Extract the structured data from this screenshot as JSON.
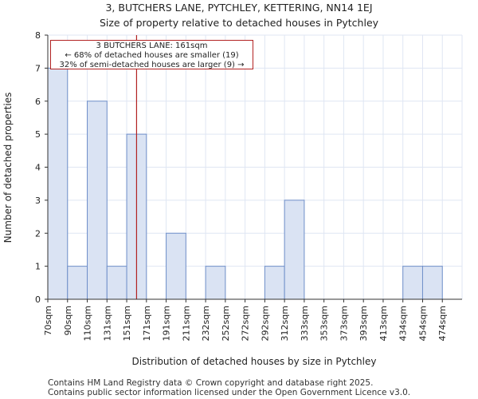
{
  "chart_data": {
    "type": "bar",
    "title": "3, BUTCHERS LANE, PYTCHLEY, KETTERING, NN14 1EJ",
    "subtitle": "Size of property relative to detached houses in Pytchley",
    "xlabel": "Distribution of detached houses by size in Pytchley",
    "ylabel": "Number of detached properties",
    "categories": [
      "70sqm",
      "90sqm",
      "110sqm",
      "131sqm",
      "151sqm",
      "171sqm",
      "191sqm",
      "211sqm",
      "232sqm",
      "252sqm",
      "272sqm",
      "292sqm",
      "312sqm",
      "333sqm",
      "353sqm",
      "373sqm",
      "393sqm",
      "413sqm",
      "434sqm",
      "454sqm",
      "474sqm"
    ],
    "values": [
      7,
      1,
      6,
      1,
      5,
      0,
      2,
      0,
      1,
      0,
      0,
      1,
      3,
      0,
      0,
      0,
      0,
      0,
      1,
      1,
      0
    ],
    "ylim": [
      0,
      8
    ],
    "yticks": [
      0,
      1,
      2,
      3,
      4,
      5,
      6,
      7,
      8
    ],
    "marker_value_sqm": 161,
    "annotation": {
      "line1": "3 BUTCHERS LANE: 161sqm",
      "line2": "← 68% of detached houses are smaller (19)",
      "line3": "32% of semi-detached houses are larger (9) →"
    },
    "colors": {
      "bar_fill": "#dae3f3",
      "bar_edge": "#6f8fc9",
      "marker": "#b22222",
      "grid": "#dfe6f3"
    }
  },
  "footer": {
    "line1": "Contains HM Land Registry data © Crown copyright and database right 2025.",
    "line2": "Contains public sector information licensed under the Open Government Licence v3.0."
  }
}
